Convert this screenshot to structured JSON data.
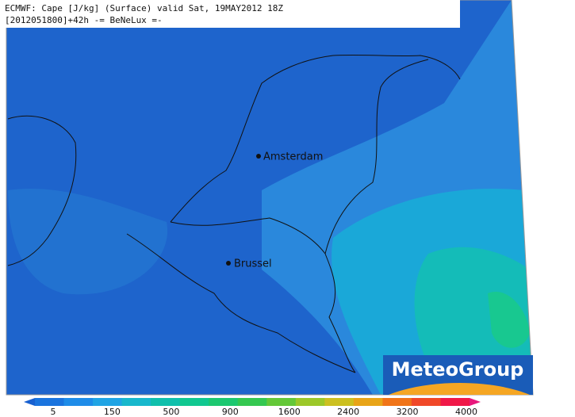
{
  "header": {
    "line1": "ECMWF: Cape [J/kg] (Surface) valid Sat, 19MAY2012 18Z",
    "line2": "[2012051800]+42h -= BeNeLux =-"
  },
  "cities": [
    {
      "label": "Amsterdam"
    },
    {
      "label": "Brussel"
    }
  ],
  "colorbar": {
    "ticks": [
      "5",
      "150",
      "500",
      "900",
      "1600",
      "2400",
      "3200",
      "4000"
    ],
    "colors": [
      "#1860d0",
      "#1a74de",
      "#1e8ce8",
      "#20a4e4",
      "#18b8cc",
      "#10c0ac",
      "#10c890",
      "#1cc870",
      "#34c850",
      "#64c838",
      "#9cc828",
      "#ccc020",
      "#e8a418",
      "#f07418",
      "#f04828",
      "#f01848",
      "#e8187c"
    ]
  },
  "logo": {
    "text": "MeteoGroup"
  }
}
